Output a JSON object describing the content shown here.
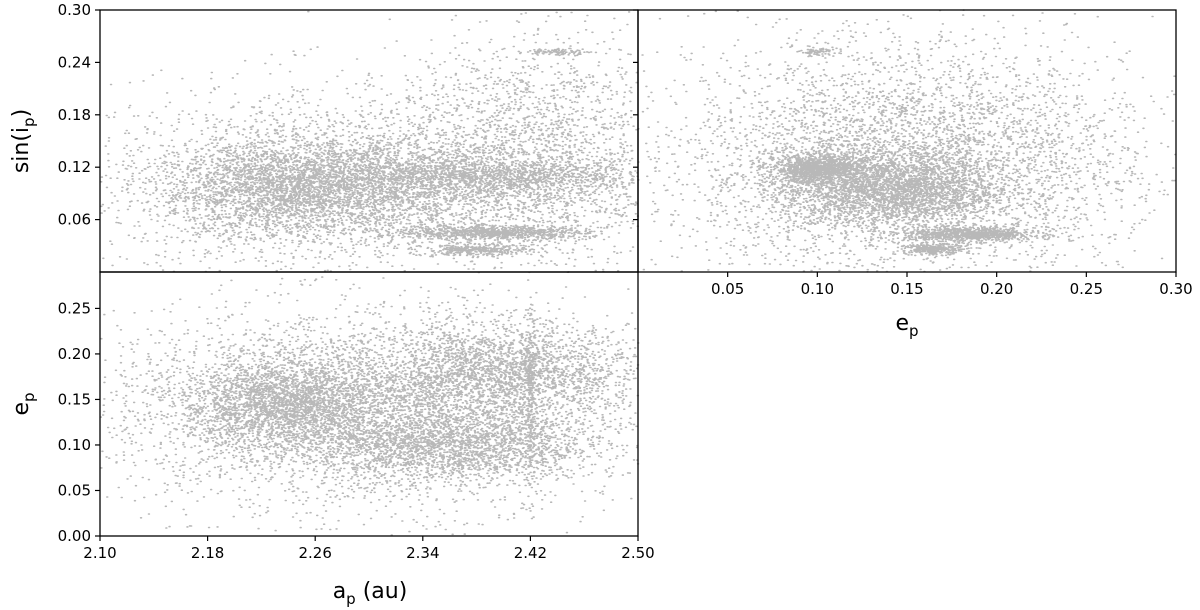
{
  "chart_data": [
    {
      "id": "a-sini",
      "type": "scatter",
      "xlim": [
        2.1,
        2.5
      ],
      "ylim": [
        0.0,
        0.3
      ],
      "xticks": [],
      "yticks": [
        "0.06",
        "0.12",
        "0.18",
        "0.24",
        "0.30"
      ],
      "xlabel": null,
      "ylabel": {
        "base": "sin(i",
        "sub": "p",
        "tail": ")"
      },
      "grid": false,
      "point_color": "#000000",
      "clusters": [
        {
          "x": 2.24,
          "y": 0.095,
          "sx": 0.05,
          "sy": 0.03,
          "n": 2600
        },
        {
          "x": 2.3,
          "y": 0.105,
          "sx": 0.06,
          "sy": 0.025,
          "n": 1800
        },
        {
          "x": 2.4,
          "y": 0.11,
          "sx": 0.06,
          "sy": 0.01,
          "n": 1100
        },
        {
          "x": 2.39,
          "y": 0.045,
          "sx": 0.035,
          "sy": 0.004,
          "n": 900
        },
        {
          "x": 2.38,
          "y": 0.025,
          "sx": 0.02,
          "sy": 0.003,
          "n": 350
        },
        {
          "x": 2.42,
          "y": 0.14,
          "sx": 0.05,
          "sy": 0.065,
          "n": 1800
        },
        {
          "x": 2.3,
          "y": 0.1,
          "sx": 0.11,
          "sy": 0.06,
          "n": 2300
        },
        {
          "x": 2.44,
          "y": 0.252,
          "sx": 0.012,
          "sy": 0.002,
          "n": 90
        }
      ]
    },
    {
      "id": "e-sini",
      "type": "scatter",
      "xlim": [
        0.0,
        0.3
      ],
      "ylim": [
        0.0,
        0.3
      ],
      "xticks": [
        "0.05",
        "0.10",
        "0.15",
        "0.20",
        "0.25",
        "0.30"
      ],
      "yticks": [],
      "xlabel": {
        "base": "e",
        "sub": "p",
        "tail": ""
      },
      "ylabel": null,
      "grid": false,
      "point_color": "#000000",
      "clusters": [
        {
          "x": 0.1,
          "y": 0.118,
          "sx": 0.012,
          "sy": 0.008,
          "n": 1200
        },
        {
          "x": 0.14,
          "y": 0.095,
          "sx": 0.03,
          "sy": 0.02,
          "n": 2600
        },
        {
          "x": 0.185,
          "y": 0.043,
          "sx": 0.018,
          "sy": 0.004,
          "n": 900
        },
        {
          "x": 0.165,
          "y": 0.026,
          "sx": 0.008,
          "sy": 0.003,
          "n": 300
        },
        {
          "x": 0.15,
          "y": 0.12,
          "sx": 0.06,
          "sy": 0.06,
          "n": 3500
        },
        {
          "x": 0.15,
          "y": 0.14,
          "sx": 0.07,
          "sy": 0.08,
          "n": 1500
        },
        {
          "x": 0.1,
          "y": 0.252,
          "sx": 0.005,
          "sy": 0.002,
          "n": 70
        }
      ]
    },
    {
      "id": "a-e",
      "type": "scatter",
      "xlim": [
        2.1,
        2.5
      ],
      "ylim": [
        0.0,
        0.29
      ],
      "xticks": [
        "2.10",
        "2.18",
        "2.26",
        "2.34",
        "2.42",
        "2.50"
      ],
      "yticks": [
        "0.00",
        "0.05",
        "0.10",
        "0.15",
        "0.20",
        "0.25"
      ],
      "xlabel": {
        "base": "a",
        "sub": "p",
        "tail": " (au)"
      },
      "ylabel": {
        "base": "e",
        "sub": "p",
        "tail": ""
      },
      "grid": false,
      "point_color": "#000000",
      "clusters": [
        {
          "x": 2.24,
          "y": 0.145,
          "sx": 0.04,
          "sy": 0.025,
          "n": 2600
        },
        {
          "x": 2.36,
          "y": 0.1,
          "sx": 0.05,
          "sy": 0.02,
          "n": 2000
        },
        {
          "x": 2.4,
          "y": 0.18,
          "sx": 0.05,
          "sy": 0.025,
          "n": 2200
        },
        {
          "x": 2.3,
          "y": 0.14,
          "sx": 0.1,
          "sy": 0.055,
          "n": 4200
        },
        {
          "x": 2.42,
          "y": 0.15,
          "sx": 0.002,
          "sy": 0.05,
          "n": 250
        }
      ]
    }
  ]
}
